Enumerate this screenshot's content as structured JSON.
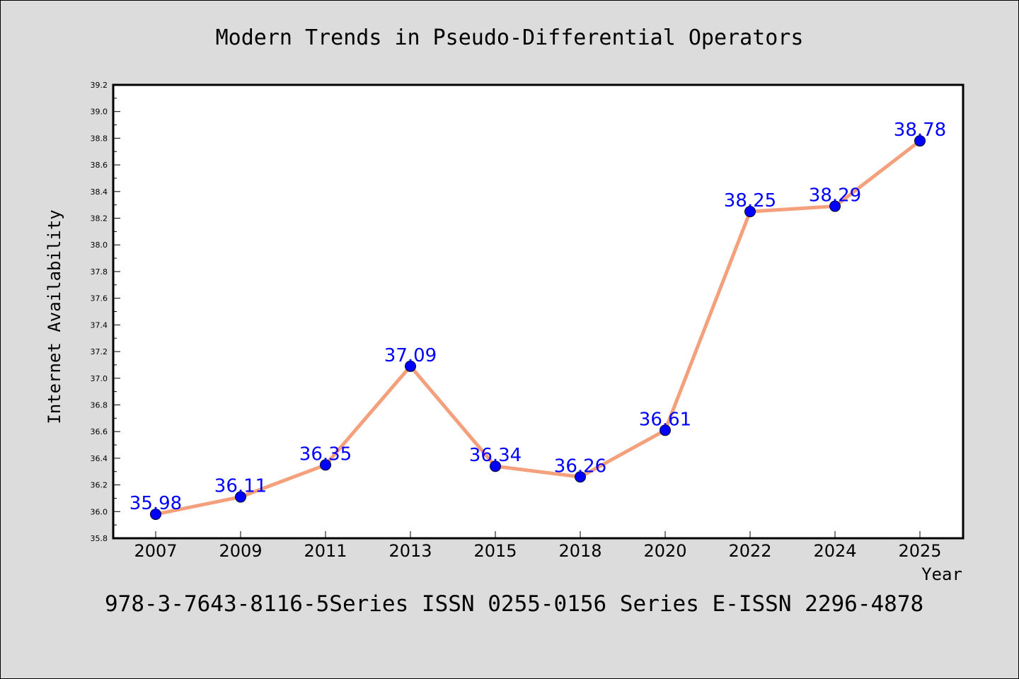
{
  "chart_data": {
    "type": "line",
    "title": "Modern Trends in Pseudo-Differential Operators",
    "xlabel": "Year",
    "ylabel": "Internet Availability",
    "categories": [
      "2007",
      "2009",
      "2011",
      "2013",
      "2015",
      "2018",
      "2020",
      "2022",
      "2024",
      "2025"
    ],
    "series": [
      {
        "values": [
          35.98,
          36.11,
          36.35,
          37.09,
          36.34,
          36.26,
          36.61,
          38.25,
          38.29,
          38.78
        ],
        "line_color": "#f4a07c",
        "marker_color": "#0000ff"
      }
    ],
    "data_labels": [
      "35.98",
      "36.11",
      "36.35",
      "37.09",
      "36.34",
      "36.26",
      "36.61",
      "38.25",
      "38.29",
      "38.78"
    ],
    "ylim": [
      35.8,
      39.2
    ],
    "yticks": [
      "35.8",
      "36.0",
      "36.2",
      "36.4",
      "36.6",
      "36.8",
      "37.0",
      "37.2",
      "37.4",
      "37.6",
      "37.8",
      "38.0",
      "38.2",
      "38.4",
      "38.6",
      "38.8",
      "39.0",
      "39.2"
    ],
    "grid": false,
    "label_color": "#0000ff"
  },
  "footer": {
    "text": "978-3-7643-8116-5Series ISSN 0255-0156 Series E-ISSN 2296-4878"
  }
}
